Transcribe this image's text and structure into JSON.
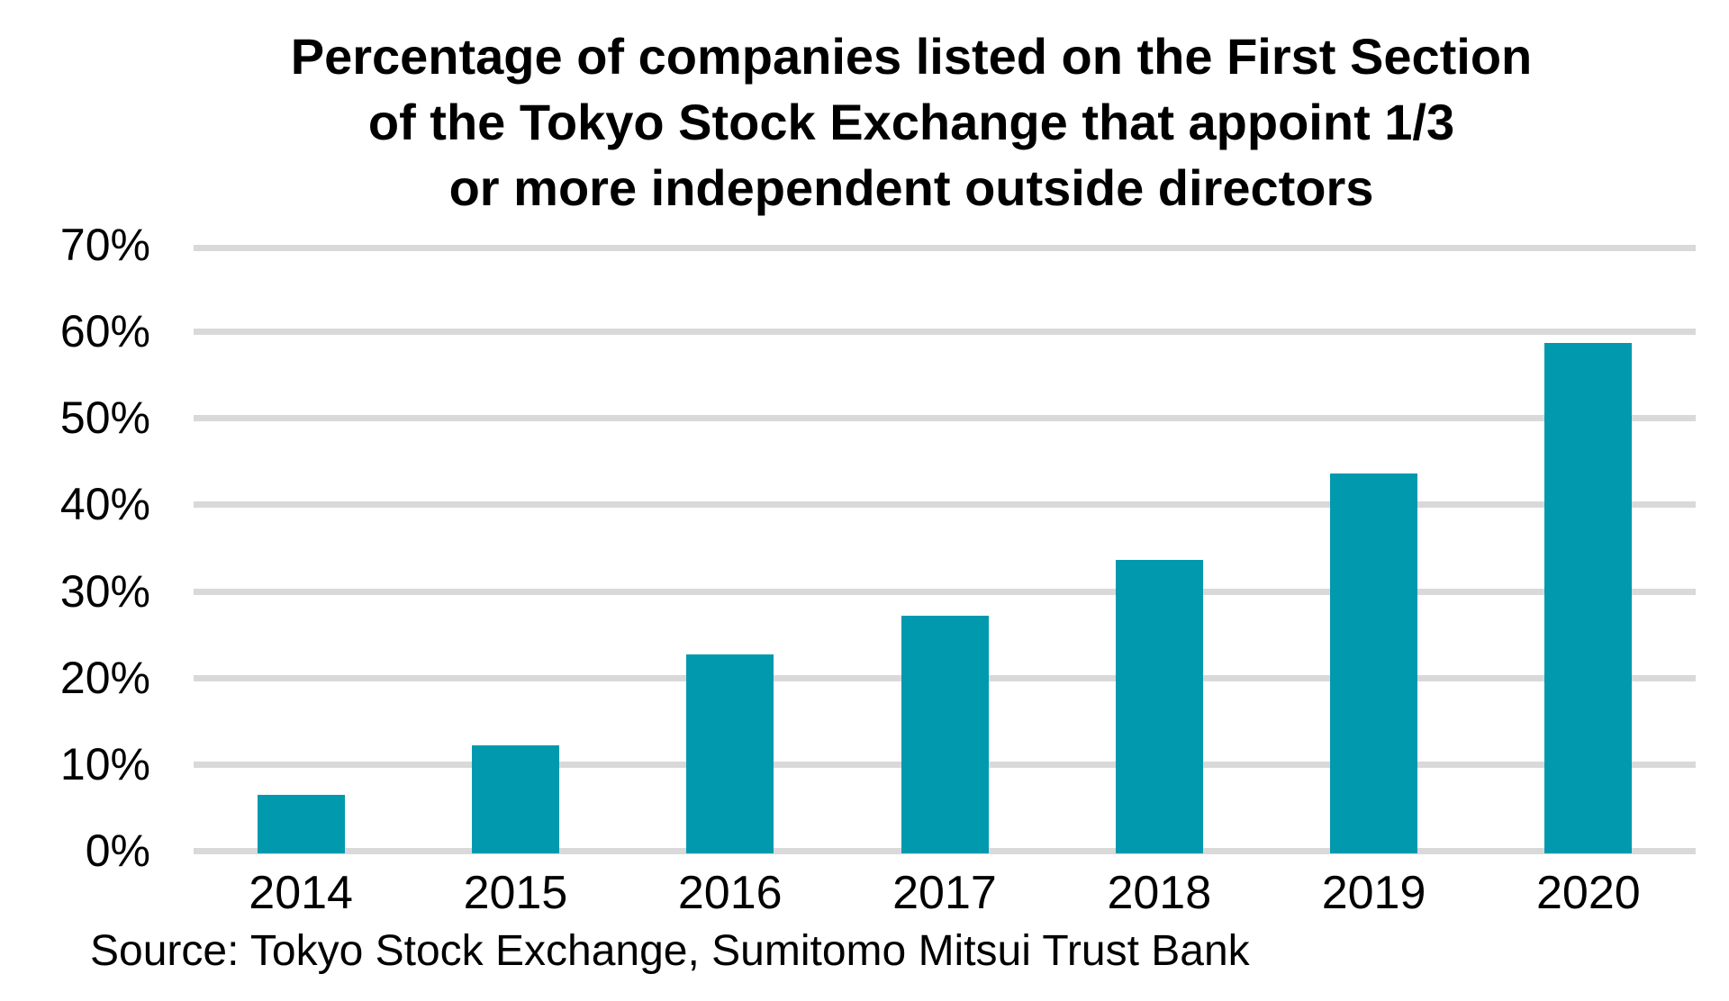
{
  "title": {
    "lines": [
      "Percentage of companies listed on the First Section",
      "of the Tokyo Stock Exchange that appoint 1/3",
      "or more independent outside directors"
    ]
  },
  "source": "Source: Tokyo Stock Exchange, Sumitomo Mitsui Trust Bank",
  "chart_data": {
    "type": "bar",
    "title": "Percentage of companies listed on the First Section of the Tokyo Stock Exchange that appoint 1/3 or more independent outside directors",
    "categories": [
      "2014",
      "2015",
      "2016",
      "2017",
      "2018",
      "2019",
      "2020"
    ],
    "values": [
      6.4,
      12.2,
      22.7,
      27.2,
      33.6,
      43.6,
      58.7
    ],
    "xlabel": "",
    "ylabel": "",
    "ylim": [
      0,
      70
    ],
    "ytick_step": 10,
    "yticks": [
      "0%",
      "10%",
      "20%",
      "30%",
      "40%",
      "50%",
      "60%",
      "70%"
    ],
    "grid": true,
    "legend": "none",
    "source": "Source: Tokyo Stock Exchange, Sumitomo Mitsui Trust Bank",
    "colors": {
      "bar": "#0099AE",
      "gridline": "#D9D9D9",
      "text": "#000000",
      "background": "#FFFFFF"
    }
  }
}
